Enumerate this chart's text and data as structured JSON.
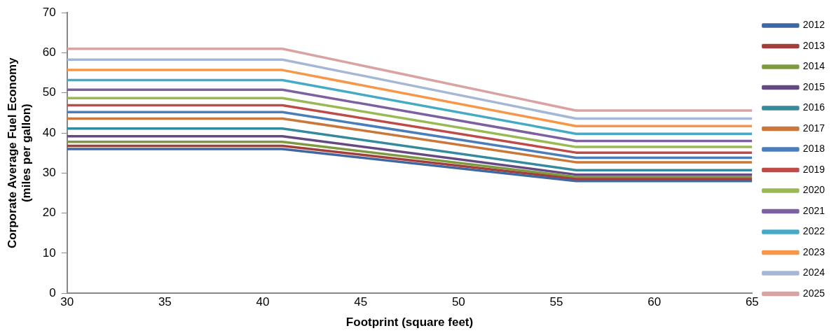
{
  "chart_data": {
    "type": "line",
    "xlabel": "Footprint (square feet)",
    "ylabel": "Corporate Average Fuel Economy\n(miles per gallon)",
    "x": [
      30,
      41,
      56,
      65
    ],
    "xlim": [
      30,
      65
    ],
    "xticks": [
      30,
      35,
      40,
      45,
      50,
      55,
      60,
      65
    ],
    "ylim": [
      0,
      70
    ],
    "yticks": [
      0,
      10,
      20,
      30,
      40,
      50,
      60,
      70
    ],
    "grid": false,
    "legend": "right",
    "marker": "none",
    "line_style": "solid",
    "series": [
      {
        "name": "2012",
        "color": "#3f68a0",
        "values": [
          36.0,
          36.0,
          28.0,
          28.0
        ]
      },
      {
        "name": "2013",
        "color": "#a43e3b",
        "values": [
          36.8,
          36.8,
          28.5,
          28.5
        ]
      },
      {
        "name": "2014",
        "color": "#7e9a40",
        "values": [
          37.8,
          37.8,
          29.0,
          29.0
        ]
      },
      {
        "name": "2015",
        "color": "#654a82",
        "values": [
          39.2,
          39.2,
          29.6,
          29.6
        ]
      },
      {
        "name": "2016",
        "color": "#358a9d",
        "values": [
          41.1,
          41.1,
          30.7,
          30.7
        ]
      },
      {
        "name": "2017",
        "color": "#c9783a",
        "values": [
          43.6,
          43.6,
          32.7,
          32.7
        ]
      },
      {
        "name": "2018",
        "color": "#4a7ebb",
        "values": [
          45.2,
          45.2,
          33.8,
          33.8
        ]
      },
      {
        "name": "2019",
        "color": "#be4b48",
        "values": [
          46.9,
          46.9,
          35.1,
          35.1
        ]
      },
      {
        "name": "2020",
        "color": "#98b954",
        "values": [
          48.7,
          48.7,
          36.5,
          36.5
        ]
      },
      {
        "name": "2021",
        "color": "#7d60a0",
        "values": [
          50.8,
          50.8,
          38.0,
          38.0
        ]
      },
      {
        "name": "2022",
        "color": "#46aac5",
        "values": [
          53.2,
          53.2,
          39.8,
          39.8
        ]
      },
      {
        "name": "2023",
        "color": "#f79646",
        "values": [
          55.7,
          55.7,
          41.7,
          41.7
        ]
      },
      {
        "name": "2024",
        "color": "#a5b7d6",
        "values": [
          58.3,
          58.3,
          43.6,
          43.6
        ]
      },
      {
        "name": "2025",
        "color": "#d9a3a3",
        "values": [
          61.0,
          61.0,
          45.6,
          45.6
        ]
      }
    ]
  }
}
